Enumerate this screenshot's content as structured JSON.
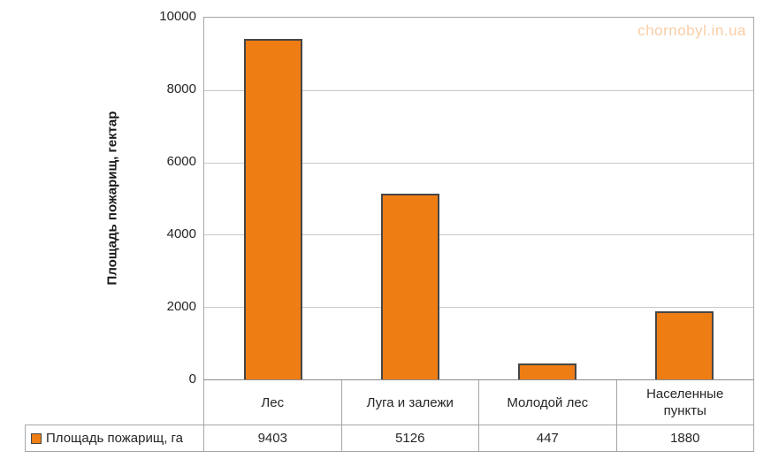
{
  "watermark": "chornobyl.in.ua",
  "colors": {
    "bar_fill": "#EE7D14",
    "bar_border": "#464646",
    "gridline": "#C9C9C9",
    "table_border": "#A6A6A6",
    "watermark_text": "#FACDA5"
  },
  "chart_data": {
    "type": "bar",
    "title": "",
    "ylabel": "Площадь пожарищ, гектар",
    "xlabel": "",
    "ylim": [
      0,
      10000
    ],
    "ytick_labels": [
      "0",
      "2000",
      "4000",
      "6000",
      "8000",
      "10000"
    ],
    "grid": true,
    "legend_position": "bottom-table",
    "categories": [
      "Лес",
      "Луга и залежи",
      "Молодой лес",
      "Населенные пункты"
    ],
    "series": [
      {
        "name": "Площадь пожарищ, га",
        "values": [
          9403,
          5126,
          447,
          1880
        ]
      }
    ]
  }
}
